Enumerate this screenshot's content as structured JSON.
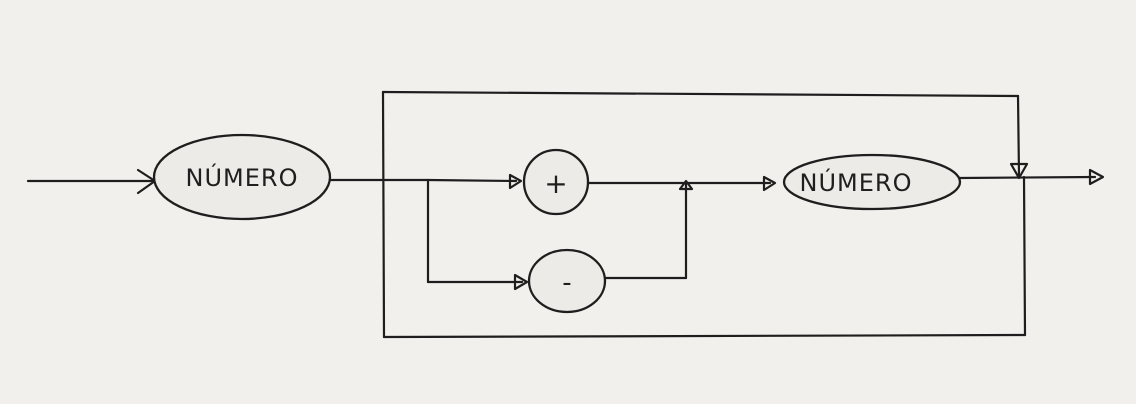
{
  "diagram": {
    "nodes": {
      "numero_start": "NÚMERO",
      "plus": "+",
      "minus": "-",
      "numero_loop": "NÚMERO"
    }
  }
}
